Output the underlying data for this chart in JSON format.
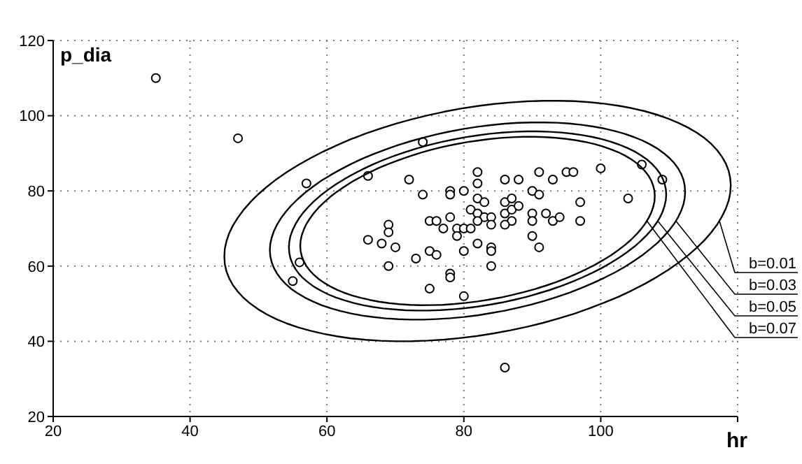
{
  "chart_data": {
    "type": "scatter",
    "xlabel": "hr",
    "ylabel": "p_dia",
    "xlim": [
      20,
      120
    ],
    "ylim": [
      20,
      120
    ],
    "xticks": [
      20,
      40,
      60,
      80,
      100,
      {
        "value": 120,
        "label": null
      }
    ],
    "yticks": [
      20,
      40,
      60,
      80,
      100,
      120
    ],
    "grid": true,
    "marker": "circle",
    "annotations": [
      "b=0.01",
      "b=0.03",
      "b=0.05",
      "b=0.07"
    ],
    "series": [
      {
        "color": "#000000",
        "x": [
          35,
          47,
          57,
          74,
          66,
          72,
          56,
          55,
          74,
          78,
          78,
          80,
          82,
          82,
          82,
          83,
          86,
          86,
          87,
          86,
          87,
          87,
          86,
          81,
          82,
          83,
          84,
          84,
          82,
          78,
          75,
          76,
          77,
          79,
          80,
          81,
          79,
          69,
          69,
          66,
          68,
          70,
          75,
          76,
          73,
          80,
          84,
          84,
          82,
          69,
          84,
          78,
          78,
          75,
          80,
          86,
          88,
          91,
          93,
          95,
          96,
          100,
          106,
          109,
          104,
          97,
          97,
          90,
          91,
          88,
          90,
          90,
          92,
          93,
          94,
          90,
          91
        ],
        "values": [
          110,
          94,
          82,
          93,
          84,
          83,
          61,
          56,
          79,
          80,
          79,
          80,
          85,
          82,
          78,
          77,
          83,
          77,
          78,
          74,
          75,
          72,
          71,
          75,
          74,
          73,
          73,
          71,
          72,
          73,
          72,
          72,
          70,
          70,
          70,
          70,
          68,
          71,
          69,
          67,
          66,
          65,
          64,
          63,
          62,
          64,
          65,
          64,
          66,
          60,
          60,
          58,
          57,
          54,
          52,
          33,
          83,
          85,
          83,
          85,
          85,
          86,
          87,
          83,
          78,
          77,
          72,
          80,
          79,
          76,
          74,
          72,
          74,
          72,
          73,
          68,
          65
        ]
      }
    ]
  }
}
